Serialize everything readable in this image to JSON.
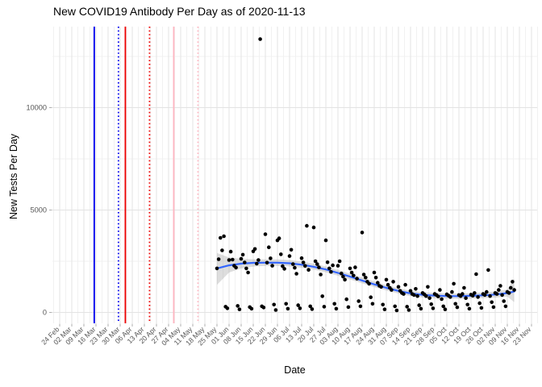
{
  "chart_data": {
    "type": "scatter",
    "title": "New COVID19 Antibody Per Day as of 2020-11-13",
    "xlabel": "Date",
    "ylabel": "New Tests Per Day",
    "x_start_date": "2020-02-24",
    "x_tick_labels": [
      "24 Feb",
      "02 Mar",
      "09 Mar",
      "16 Mar",
      "23 Mar",
      "30 Mar",
      "06 Apr",
      "13 Apr",
      "20 Apr",
      "27 Apr",
      "04 May",
      "11 May",
      "18 May",
      "25 May",
      "01 Jun",
      "08 Jun",
      "15 Jun",
      "22 Jun",
      "29 Jun",
      "06 Jul",
      "13 Jul",
      "20 Jul",
      "27 Jul",
      "03 Aug",
      "10 Aug",
      "17 Aug",
      "24 Aug",
      "31 Aug",
      "07 Sep",
      "14 Sep",
      "21 Sep",
      "28 Sep",
      "05 Oct",
      "12 Oct",
      "19 Oct",
      "26 Oct",
      "02 Nov",
      "09 Nov",
      "16 Nov",
      "23 Nov"
    ],
    "y_tick_labels": [
      "0",
      "5000",
      "10000"
    ],
    "y_major": [
      0,
      5000,
      10000
    ],
    "y_minor": [
      2500,
      7500,
      12500
    ],
    "ylim": [
      0,
      13900
    ],
    "grid": true,
    "legend": "none",
    "vlines": [
      {
        "date": "2020-03-15",
        "color": "#0000EE",
        "style": "solid"
      },
      {
        "date": "2020-03-29",
        "color": "#0000EE",
        "style": "dotted"
      },
      {
        "date": "2020-04-02",
        "color": "#EE0000",
        "style": "solid"
      },
      {
        "date": "2020-04-16",
        "color": "#EE0000",
        "style": "dotted"
      },
      {
        "date": "2020-04-30",
        "color": "#FFB6C1",
        "style": "solid"
      },
      {
        "date": "2020-05-14",
        "color": "#FFB6C1",
        "style": "dotted"
      }
    ],
    "smooth": [
      [
        "2020-05-25",
        2150
      ],
      [
        "2020-06-01",
        2300
      ],
      [
        "2020-06-08",
        2380
      ],
      [
        "2020-06-15",
        2420
      ],
      [
        "2020-06-22",
        2430
      ],
      [
        "2020-06-29",
        2430
      ],
      [
        "2020-07-06",
        2400
      ],
      [
        "2020-07-13",
        2330
      ],
      [
        "2020-07-20",
        2230
      ],
      [
        "2020-07-27",
        2100
      ],
      [
        "2020-08-03",
        1930
      ],
      [
        "2020-08-10",
        1750
      ],
      [
        "2020-08-17",
        1560
      ],
      [
        "2020-08-24",
        1370
      ],
      [
        "2020-08-31",
        1200
      ],
      [
        "2020-09-07",
        1050
      ],
      [
        "2020-09-14",
        930
      ],
      [
        "2020-09-21",
        860
      ],
      [
        "2020-09-28",
        820
      ],
      [
        "2020-10-05",
        800
      ],
      [
        "2020-10-12",
        795
      ],
      [
        "2020-10-19",
        810
      ],
      [
        "2020-10-26",
        835
      ],
      [
        "2020-11-02",
        875
      ],
      [
        "2020-11-09",
        945
      ],
      [
        "2020-11-13",
        1020
      ]
    ],
    "ribbon": [
      [
        "2020-05-25",
        1350,
        2900
      ],
      [
        "2020-06-01",
        1950,
        2680
      ],
      [
        "2020-06-08",
        2150,
        2620
      ],
      [
        "2020-06-15",
        2240,
        2600
      ],
      [
        "2020-06-22",
        2270,
        2590
      ],
      [
        "2020-06-29",
        2270,
        2590
      ],
      [
        "2020-07-06",
        2250,
        2560
      ],
      [
        "2020-07-13",
        2180,
        2480
      ],
      [
        "2020-07-20",
        2090,
        2380
      ],
      [
        "2020-07-27",
        1960,
        2240
      ],
      [
        "2020-08-03",
        1790,
        2070
      ],
      [
        "2020-08-10",
        1610,
        1890
      ],
      [
        "2020-08-17",
        1420,
        1700
      ],
      [
        "2020-08-24",
        1240,
        1510
      ],
      [
        "2020-08-31",
        1070,
        1330
      ],
      [
        "2020-09-07",
        920,
        1180
      ],
      [
        "2020-09-14",
        800,
        1060
      ],
      [
        "2020-09-21",
        730,
        990
      ],
      [
        "2020-09-28",
        690,
        950
      ],
      [
        "2020-10-05",
        670,
        930
      ],
      [
        "2020-10-12",
        665,
        925
      ],
      [
        "2020-10-19",
        675,
        945
      ],
      [
        "2020-10-26",
        695,
        975
      ],
      [
        "2020-11-02",
        725,
        1025
      ],
      [
        "2020-11-09",
        770,
        1120
      ],
      [
        "2020-11-13",
        500,
        1650
      ]
    ],
    "points": [
      [
        "2020-05-25",
        2150
      ],
      [
        "2020-05-26",
        2600
      ],
      [
        "2020-05-27",
        3640
      ],
      [
        "2020-05-28",
        3030
      ],
      [
        "2020-05-29",
        3720
      ],
      [
        "2020-05-30",
        280
      ],
      [
        "2020-05-31",
        200
      ],
      [
        "2020-06-01",
        2560
      ],
      [
        "2020-06-02",
        2970
      ],
      [
        "2020-06-03",
        2580
      ],
      [
        "2020-06-04",
        2280
      ],
      [
        "2020-06-05",
        2190
      ],
      [
        "2020-06-06",
        320
      ],
      [
        "2020-06-07",
        150
      ],
      [
        "2020-06-08",
        2620
      ],
      [
        "2020-06-09",
        2820
      ],
      [
        "2020-06-10",
        2440
      ],
      [
        "2020-06-11",
        2150
      ],
      [
        "2020-06-12",
        1950
      ],
      [
        "2020-06-13",
        260
      ],
      [
        "2020-06-14",
        180
      ],
      [
        "2020-06-15",
        2980
      ],
      [
        "2020-06-16",
        3100
      ],
      [
        "2020-06-17",
        2380
      ],
      [
        "2020-06-18",
        2560
      ],
      [
        "2020-06-19",
        13346
      ],
      [
        "2020-06-20",
        300
      ],
      [
        "2020-06-21",
        240
      ],
      [
        "2020-06-22",
        3820
      ],
      [
        "2020-06-23",
        2430
      ],
      [
        "2020-06-24",
        3180
      ],
      [
        "2020-06-25",
        2640
      ],
      [
        "2020-06-26",
        2280
      ],
      [
        "2020-06-27",
        380
      ],
      [
        "2020-06-28",
        120
      ],
      [
        "2020-06-29",
        3520
      ],
      [
        "2020-06-30",
        3620
      ],
      [
        "2020-07-01",
        2840
      ],
      [
        "2020-07-02",
        2260
      ],
      [
        "2020-07-03",
        2130
      ],
      [
        "2020-07-04",
        420
      ],
      [
        "2020-07-05",
        180
      ],
      [
        "2020-07-06",
        2750
      ],
      [
        "2020-07-07",
        3060
      ],
      [
        "2020-07-08",
        2360
      ],
      [
        "2020-07-09",
        2180
      ],
      [
        "2020-07-10",
        1890
      ],
      [
        "2020-07-11",
        350
      ],
      [
        "2020-07-12",
        200
      ],
      [
        "2020-07-13",
        2650
      ],
      [
        "2020-07-14",
        2440
      ],
      [
        "2020-07-15",
        2270
      ],
      [
        "2020-07-16",
        4230
      ],
      [
        "2020-07-17",
        2080
      ],
      [
        "2020-07-18",
        300
      ],
      [
        "2020-07-19",
        160
      ],
      [
        "2020-07-20",
        4150
      ],
      [
        "2020-07-21",
        2500
      ],
      [
        "2020-07-22",
        2360
      ],
      [
        "2020-07-23",
        2200
      ],
      [
        "2020-07-24",
        1850
      ],
      [
        "2020-07-25",
        790
      ],
      [
        "2020-07-26",
        280
      ],
      [
        "2020-07-27",
        3520
      ],
      [
        "2020-07-28",
        2450
      ],
      [
        "2020-07-29",
        2150
      ],
      [
        "2020-07-30",
        1980
      ],
      [
        "2020-07-31",
        2300
      ],
      [
        "2020-08-01",
        420
      ],
      [
        "2020-08-02",
        180
      ],
      [
        "2020-08-03",
        2280
      ],
      [
        "2020-08-04",
        2500
      ],
      [
        "2020-08-05",
        1900
      ],
      [
        "2020-08-06",
        1750
      ],
      [
        "2020-08-07",
        1600
      ],
      [
        "2020-08-08",
        640
      ],
      [
        "2020-08-09",
        260
      ],
      [
        "2020-08-10",
        2150
      ],
      [
        "2020-08-11",
        1950
      ],
      [
        "2020-08-12",
        1800
      ],
      [
        "2020-08-13",
        2200
      ],
      [
        "2020-08-14",
        1650
      ],
      [
        "2020-08-15",
        550
      ],
      [
        "2020-08-16",
        300
      ],
      [
        "2020-08-17",
        3900
      ],
      [
        "2020-08-18",
        1850
      ],
      [
        "2020-08-19",
        1700
      ],
      [
        "2020-08-20",
        1500
      ],
      [
        "2020-08-21",
        1400
      ],
      [
        "2020-08-22",
        740
      ],
      [
        "2020-08-23",
        420
      ],
      [
        "2020-08-24",
        1950
      ],
      [
        "2020-08-25",
        1700
      ],
      [
        "2020-08-26",
        1450
      ],
      [
        "2020-08-27",
        1300
      ],
      [
        "2020-08-28",
        1250
      ],
      [
        "2020-08-29",
        380
      ],
      [
        "2020-08-30",
        150
      ],
      [
        "2020-08-31",
        1600
      ],
      [
        "2020-09-01",
        1350
      ],
      [
        "2020-09-02",
        1200
      ],
      [
        "2020-09-03",
        1100
      ],
      [
        "2020-09-04",
        1500
      ],
      [
        "2020-09-05",
        300
      ],
      [
        "2020-09-06",
        100
      ],
      [
        "2020-09-07",
        1250
      ],
      [
        "2020-09-08",
        1050
      ],
      [
        "2020-09-09",
        950
      ],
      [
        "2020-09-10",
        900
      ],
      [
        "2020-09-11",
        1350
      ],
      [
        "2020-09-12",
        280
      ],
      [
        "2020-09-13",
        120
      ],
      [
        "2020-09-14",
        1050
      ],
      [
        "2020-09-15",
        900
      ],
      [
        "2020-09-16",
        850
      ],
      [
        "2020-09-17",
        1150
      ],
      [
        "2020-09-18",
        800
      ],
      [
        "2020-09-19",
        350
      ],
      [
        "2020-09-20",
        180
      ],
      [
        "2020-09-21",
        950
      ],
      [
        "2020-09-22",
        880
      ],
      [
        "2020-09-23",
        800
      ],
      [
        "2020-09-24",
        1250
      ],
      [
        "2020-09-25",
        700
      ],
      [
        "2020-09-26",
        400
      ],
      [
        "2020-09-27",
        200
      ],
      [
        "2020-09-28",
        900
      ],
      [
        "2020-09-29",
        850
      ],
      [
        "2020-09-30",
        780
      ],
      [
        "2020-10-01",
        1100
      ],
      [
        "2020-10-02",
        650
      ],
      [
        "2020-10-03",
        300
      ],
      [
        "2020-10-04",
        150
      ],
      [
        "2020-10-05",
        880
      ],
      [
        "2020-10-06",
        820
      ],
      [
        "2020-10-07",
        750
      ],
      [
        "2020-10-08",
        1000
      ],
      [
        "2020-10-09",
        1400
      ],
      [
        "2020-10-10",
        420
      ],
      [
        "2020-10-11",
        250
      ],
      [
        "2020-10-12",
        850
      ],
      [
        "2020-10-13",
        800
      ],
      [
        "2020-10-14",
        900
      ],
      [
        "2020-10-15",
        1200
      ],
      [
        "2020-10-16",
        700
      ],
      [
        "2020-10-17",
        380
      ],
      [
        "2020-10-18",
        180
      ],
      [
        "2020-10-19",
        870
      ],
      [
        "2020-10-20",
        820
      ],
      [
        "2020-10-21",
        950
      ],
      [
        "2020-10-22",
        1870
      ],
      [
        "2020-10-23",
        750
      ],
      [
        "2020-10-24",
        450
      ],
      [
        "2020-10-25",
        220
      ],
      [
        "2020-10-26",
        900
      ],
      [
        "2020-10-27",
        850
      ],
      [
        "2020-10-28",
        1000
      ],
      [
        "2020-10-29",
        2070
      ],
      [
        "2020-10-30",
        800
      ],
      [
        "2020-10-31",
        500
      ],
      [
        "2020-11-01",
        260
      ],
      [
        "2020-11-02",
        950
      ],
      [
        "2020-11-03",
        900
      ],
      [
        "2020-11-04",
        1100
      ],
      [
        "2020-11-05",
        1300
      ],
      [
        "2020-11-06",
        850
      ],
      [
        "2020-11-07",
        550
      ],
      [
        "2020-11-08",
        300
      ],
      [
        "2020-11-09",
        1000
      ],
      [
        "2020-11-10",
        950
      ],
      [
        "2020-11-11",
        1200
      ],
      [
        "2020-11-12",
        1500
      ],
      [
        "2020-11-13",
        1100
      ]
    ],
    "style": {
      "background": "#FFFFFF",
      "point_color": "#000000",
      "smooth_color": "#3366FF",
      "ribbon_color": "#9E9E9E",
      "grid_major": "#E3E3E3",
      "grid_minor": "#F1F1F1",
      "tick_color": "#AFAFAF",
      "axis_text_color": "#555555",
      "title_color": "#000000"
    }
  }
}
